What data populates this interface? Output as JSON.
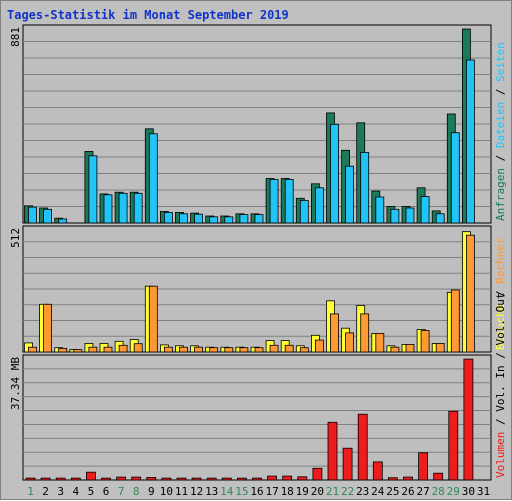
{
  "title": "Tages-Statistik im Monat September 2019",
  "colors": {
    "frame_bg": "#c0c0c0",
    "plot_bg": "#bebebe",
    "grid": "#808080",
    "weekday_label": "#000000",
    "weekend_label": "#2e8b57",
    "hits": "#1a7a5a",
    "files": "#22c3f7",
    "pages": "#22c3f7",
    "visits": "#ffff33",
    "sites": "#ff9933",
    "kbytes": "#ee1c1c",
    "title": "#1133cc"
  },
  "chart_data": [
    {
      "type": "bar",
      "panel": "top",
      "ymax_label": "881",
      "ylim": [
        0,
        881
      ],
      "grid": true,
      "x": [
        1,
        2,
        3,
        4,
        5,
        6,
        7,
        8,
        9,
        10,
        11,
        12,
        13,
        14,
        15,
        16,
        17,
        18,
        19,
        20,
        21,
        22,
        23,
        24,
        25,
        26,
        27,
        28,
        29,
        30,
        31
      ],
      "weekend_days": [
        1,
        7,
        8,
        14,
        15,
        21,
        22,
        28,
        29
      ],
      "legend": [
        "Anfragen",
        "Dateien",
        "Seiten"
      ],
      "series": [
        {
          "name": "Anfragen",
          "color": "#1a7a5a",
          "values": [
            78,
            68,
            22,
            0,
            325,
            132,
            140,
            140,
            428,
            52,
            48,
            45,
            32,
            32,
            42,
            42,
            202,
            202,
            112,
            178,
            500,
            330,
            455,
            145,
            75,
            75,
            160,
            55,
            495,
            881,
            0
          ]
        },
        {
          "name": "Dateien",
          "color": "#22c3f7",
          "values": [
            72,
            62,
            18,
            0,
            305,
            128,
            135,
            135,
            405,
            48,
            42,
            40,
            28,
            28,
            38,
            38,
            198,
            198,
            102,
            160,
            448,
            258,
            320,
            118,
            62,
            68,
            120,
            42,
            410,
            740,
            0
          ]
        },
        {
          "name": "Seiten",
          "color": "#22c3f7",
          "values": [
            0,
            0,
            0,
            0,
            0,
            0,
            0,
            0,
            0,
            0,
            0,
            0,
            0,
            0,
            0,
            0,
            0,
            0,
            0,
            0,
            0,
            0,
            0,
            0,
            0,
            0,
            0,
            0,
            0,
            0,
            0
          ]
        }
      ]
    },
    {
      "type": "bar",
      "panel": "middle",
      "ymax_label": "512",
      "ylim": [
        0,
        512
      ],
      "grid": true,
      "x": [
        1,
        2,
        3,
        4,
        5,
        6,
        7,
        8,
        9,
        10,
        11,
        12,
        13,
        14,
        15,
        16,
        17,
        18,
        19,
        20,
        21,
        22,
        23,
        24,
        25,
        26,
        27,
        28,
        29,
        30,
        31
      ],
      "legend": [
        "Besuche",
        "Rechner"
      ],
      "series": [
        {
          "name": "Besuche",
          "color": "#ffff33",
          "values": [
            38,
            200,
            18,
            10,
            36,
            36,
            45,
            52,
            276,
            30,
            26,
            26,
            20,
            20,
            20,
            20,
            48,
            48,
            26,
            70,
            215,
            100,
            195,
            78,
            26,
            32,
            95,
            36,
            250,
            505,
            0
          ]
        },
        {
          "name": "Rechner",
          "color": "#ff9933",
          "values": [
            20,
            200,
            15,
            10,
            20,
            20,
            28,
            35,
            276,
            20,
            20,
            20,
            18,
            18,
            18,
            18,
            28,
            28,
            18,
            50,
            160,
            80,
            160,
            78,
            20,
            32,
            90,
            36,
            260,
            490,
            0
          ]
        }
      ]
    },
    {
      "type": "bar",
      "panel": "bottom",
      "ymax_label": "37.34 MB",
      "ylim": [
        0,
        37.34
      ],
      "grid": true,
      "x": [
        1,
        2,
        3,
        4,
        5,
        6,
        7,
        8,
        9,
        10,
        11,
        12,
        13,
        14,
        15,
        16,
        17,
        18,
        19,
        20,
        21,
        22,
        23,
        24,
        25,
        26,
        27,
        28,
        29,
        30,
        31
      ],
      "legend": [
        "Volumen",
        "Vol. In",
        "Vol. Out"
      ],
      "series": [
        {
          "name": "Volumen",
          "color": "#ee1c1c",
          "values": [
            0.6,
            0.6,
            0.6,
            0.6,
            2.4,
            0.6,
            0.9,
            0.9,
            0.8,
            0.6,
            0.6,
            0.6,
            0.6,
            0.6,
            0.6,
            0.6,
            1.2,
            1.2,
            1.0,
            3.6,
            17.8,
            9.8,
            20.3,
            5.6,
            0.7,
            0.9,
            8.4,
            2.1,
            21.2,
            37.3,
            0
          ]
        }
      ]
    }
  ]
}
